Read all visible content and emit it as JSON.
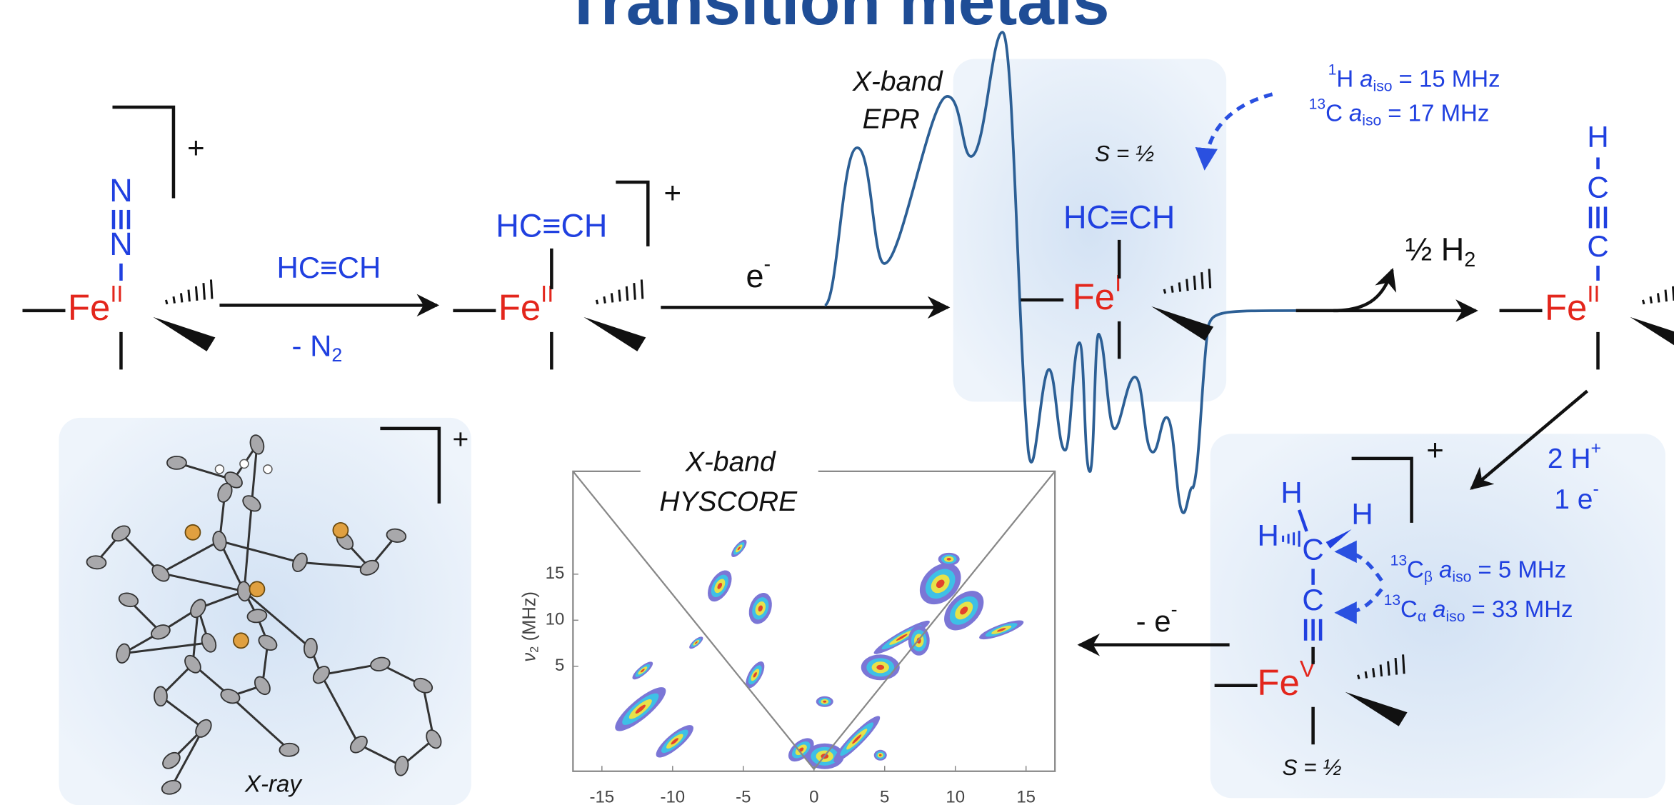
{
  "title": "Transition metals",
  "complex_1": {
    "ligand_top": "N",
    "ligand_bottom": "N",
    "metal": "Fe",
    "oxidation_state": "II",
    "charge": "+"
  },
  "step_1": {
    "reagent": "HC≡CH",
    "byproduct": "- N",
    "byproduct_subscript": "2"
  },
  "complex_2": {
    "ligand": "HC≡CH",
    "metal": "Fe",
    "oxidation_state": "II",
    "charge": "+"
  },
  "step_2": {
    "reagent": "e",
    "reagent_superscript": "-"
  },
  "epr": {
    "line_1": "X-band",
    "line_2": "EPR"
  },
  "complex_3": {
    "spin": "S = ½",
    "ligand": "HC≡CH",
    "metal": "Fe",
    "oxidation_state": "I"
  },
  "hyperfine_top": [
    {
      "mass": "1",
      "element": "H",
      "symbol": "a",
      "subscript": "iso",
      "value": "= 15 MHz"
    },
    {
      "mass": "13",
      "element": "C",
      "symbol": "a",
      "subscript": "iso",
      "value": "= 17 MHz"
    }
  ],
  "step_3": {
    "product": "½ H",
    "product_subscript": "2"
  },
  "complex_4": {
    "ligand_top": "H",
    "ligand_middle": "C",
    "ligand_bottom": "C",
    "metal": "Fe",
    "oxidation_state": "II"
  },
  "step_4": {
    "reagent_1": "2 H",
    "reagent_1_superscript": "+",
    "reagent_2": "1 e",
    "reagent_2_superscript": "-"
  },
  "complex_5": {
    "charge": "+",
    "atoms": [
      "H",
      "H",
      "H",
      "C",
      "C"
    ],
    "metal": "Fe",
    "oxidation_state": "V",
    "spin": "S = ½"
  },
  "hyperfine_bottom": [
    {
      "mass": "13",
      "element": "C",
      "element_subscript": "β",
      "symbol": "a",
      "subscript": "iso",
      "value": "= 5 MHz"
    },
    {
      "mass": "13",
      "element": "C",
      "element_subscript": "α",
      "symbol": "a",
      "subscript": "iso",
      "value": "= 33 MHz"
    }
  ],
  "step_5": {
    "reagent": "- e",
    "reagent_superscript": "-"
  },
  "hyscore": {
    "line_1": "X-band",
    "line_2": "HYSCORE",
    "y_label": "ν",
    "y_label_subscript": "2",
    "y_label_unit": "(MHz)",
    "xticks": [
      -15,
      -10,
      -5,
      0,
      5,
      10,
      15
    ],
    "yticks": [
      5,
      10,
      15
    ]
  },
  "xray": {
    "label": "X-ray",
    "charge": "+"
  }
}
